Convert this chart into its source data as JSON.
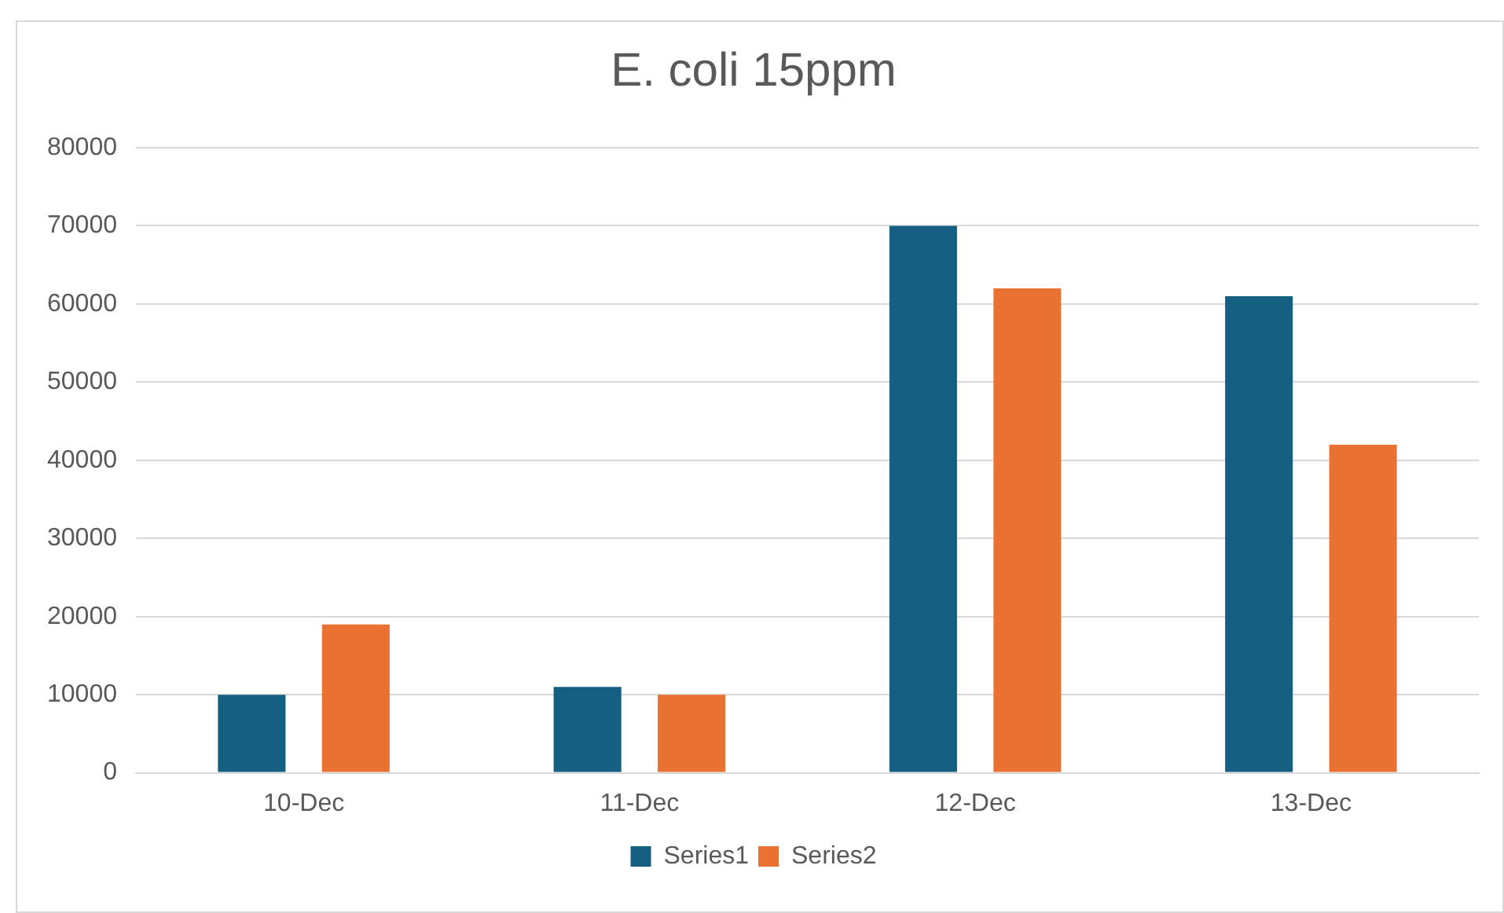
{
  "chart_data": {
    "type": "bar",
    "title": "E. coli 15ppm",
    "categories": [
      "10-Dec",
      "11-Dec",
      "12-Dec",
      "13-Dec"
    ],
    "series": [
      {
        "name": "Series1",
        "color": "#156082",
        "values": [
          10000,
          11000,
          70000,
          61000
        ]
      },
      {
        "name": "Series2",
        "color": "#e97132",
        "values": [
          19000,
          10000,
          62000,
          42000
        ]
      }
    ],
    "ylim": [
      0,
      80000
    ],
    "yticks": [
      0,
      10000,
      20000,
      30000,
      40000,
      50000,
      60000,
      70000,
      80000
    ],
    "grid": "y",
    "legend": "bottom"
  }
}
